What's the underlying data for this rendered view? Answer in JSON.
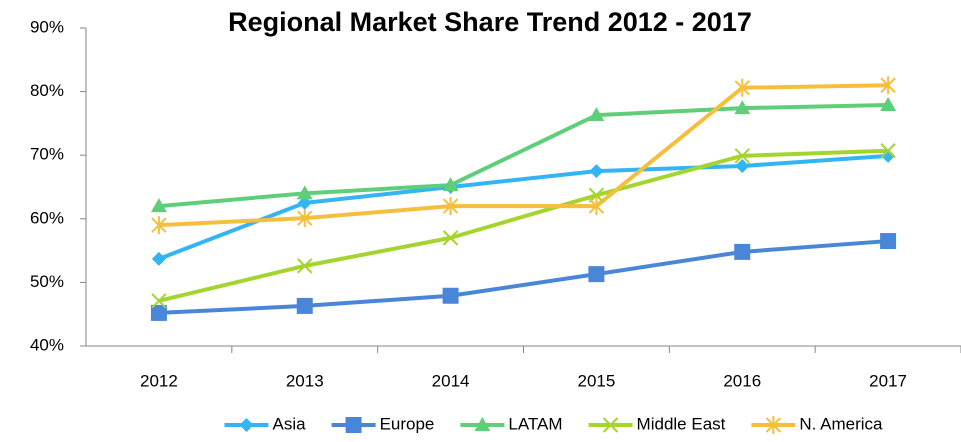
{
  "chart_data": {
    "type": "line",
    "title": "Regional Market Share Trend 2012 - 2017",
    "categories": [
      "2012",
      "2013",
      "2014",
      "2015",
      "2016",
      "2017"
    ],
    "series": [
      {
        "name": "Asia",
        "color": "#33b5f5",
        "marker": "diamond",
        "values": [
          53.7,
          62.5,
          65,
          67.5,
          68.3,
          69.9
        ]
      },
      {
        "name": "Europe",
        "color": "#4a86d8",
        "marker": "square",
        "values": [
          45.2,
          46.3,
          47.9,
          51.3,
          54.8,
          56.5
        ]
      },
      {
        "name": "LATAM",
        "color": "#5ecf78",
        "marker": "triangle",
        "values": [
          62,
          64,
          65.3,
          76.3,
          77.4,
          77.9
        ]
      },
      {
        "name": "Middle East",
        "color": "#a6d42e",
        "marker": "x",
        "values": [
          47.1,
          52.6,
          57,
          63.7,
          69.9,
          70.7
        ]
      },
      {
        "name": "N. America",
        "color": "#f5bf3c",
        "marker": "star",
        "values": [
          59,
          60.1,
          62,
          62,
          80.6,
          81
        ]
      }
    ],
    "ylim": [
      40,
      90
    ],
    "yticks": [
      {
        "value": 40,
        "label": "40%"
      },
      {
        "value": 50,
        "label": "50%"
      },
      {
        "value": 60,
        "label": "60%"
      },
      {
        "value": 70,
        "label": "70%"
      },
      {
        "value": 80,
        "label": "80%"
      },
      {
        "value": 90,
        "label": "90%"
      }
    ],
    "grid": false,
    "legend": "bottom"
  }
}
